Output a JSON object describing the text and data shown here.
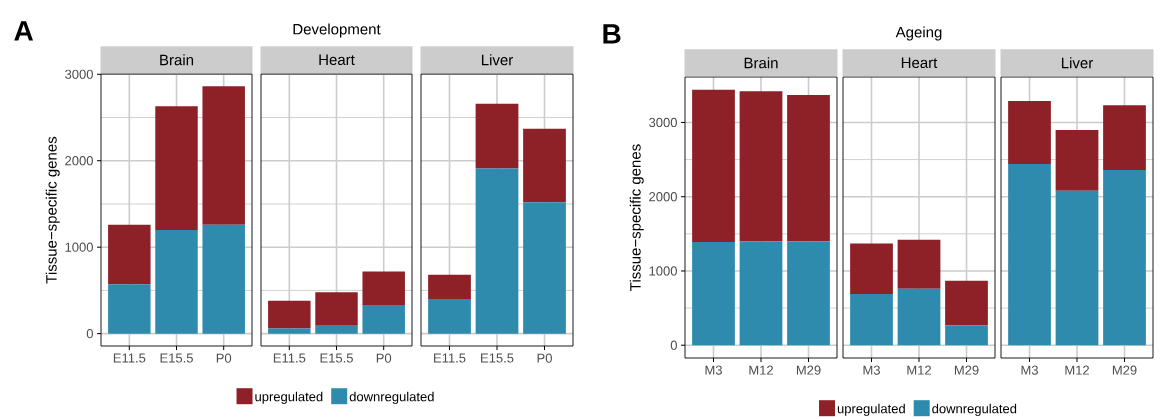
{
  "chart_data": [
    {
      "type": "bar",
      "subtitle": "Brain",
      "ylabel": "Tissue−specific genes",
      "annotations": [
        "A"
      ],
      "categories": [
        "E11.5",
        "E15.5",
        "P0"
      ],
      "stacked": true,
      "grid": true,
      "ylim": [
        -143,
        3003
      ],
      "yticks": [
        0,
        1000,
        2000,
        3000
      ],
      "series": [
        {
          "color": "#2e8bae",
          "values": [
            570,
            1200,
            1260
          ]
        },
        {
          "color": "#8e2027",
          "values": [
            690,
            1430,
            1600
          ]
        }
      ]
    },
    {
      "type": "bar",
      "title": "Development",
      "subtitle": "Heart",
      "categories": [
        "E11.5",
        "E15.5",
        "P0"
      ],
      "stacked": true,
      "grid": true,
      "legend": "bottom",
      "tick_labels": "x",
      "ylim": [
        -143,
        3003
      ],
      "yticks": [
        0,
        1000,
        2000,
        3000
      ],
      "series": [
        {
          "name": "downregulated",
          "color": "#2e8bae",
          "values": [
            60,
            90,
            330
          ]
        },
        {
          "name": "upregulated",
          "color": "#8e2027",
          "values": [
            320,
            390,
            390
          ]
        }
      ]
    },
    {
      "type": "bar",
      "subtitle": "Liver",
      "categories": [
        "E11.5",
        "E15.5",
        "P0"
      ],
      "stacked": true,
      "grid": true,
      "tick_labels": "x",
      "ylim": [
        -143,
        3003
      ],
      "yticks": [
        0,
        1000,
        2000,
        3000
      ],
      "series": [
        {
          "color": "#2e8bae",
          "values": [
            400,
            1910,
            1520
          ]
        },
        {
          "color": "#8e2027",
          "values": [
            280,
            750,
            850
          ]
        }
      ]
    },
    {
      "type": "bar",
      "subtitle": "Brain",
      "ylabel": "Tissue−specific genes",
      "annotations": [
        "B"
      ],
      "categories": [
        "M3",
        "M12",
        "M29"
      ],
      "stacked": true,
      "grid": true,
      "ylim": [
        -172,
        3612
      ],
      "yticks": [
        0,
        1000,
        2000,
        3000
      ],
      "series": [
        {
          "color": "#2e8bae",
          "values": [
            1390,
            1400,
            1400
          ]
        },
        {
          "color": "#8e2027",
          "values": [
            2050,
            2020,
            1970
          ]
        }
      ]
    },
    {
      "type": "bar",
      "title": "Ageing",
      "subtitle": "Heart",
      "categories": [
        "M3",
        "M12",
        "M29"
      ],
      "stacked": true,
      "grid": true,
      "legend": "bottom",
      "tick_labels": "x",
      "ylim": [
        -172,
        3612
      ],
      "yticks": [
        0,
        1000,
        2000,
        3000
      ],
      "series": [
        {
          "name": "downregulated",
          "color": "#2e8bae",
          "values": [
            690,
            760,
            270
          ]
        },
        {
          "name": "upregulated",
          "color": "#8e2027",
          "values": [
            680,
            660,
            600
          ]
        }
      ]
    },
    {
      "type": "bar",
      "subtitle": "Liver",
      "categories": [
        "M3",
        "M12",
        "M29"
      ],
      "stacked": true,
      "grid": true,
      "tick_labels": "x",
      "ylim": [
        -172,
        3612
      ],
      "yticks": [
        0,
        1000,
        2000,
        3000
      ],
      "series": [
        {
          "color": "#2e8bae",
          "values": [
            2440,
            2080,
            2360
          ]
        },
        {
          "color": "#8e2027",
          "values": [
            850,
            820,
            870
          ]
        }
      ]
    }
  ]
}
